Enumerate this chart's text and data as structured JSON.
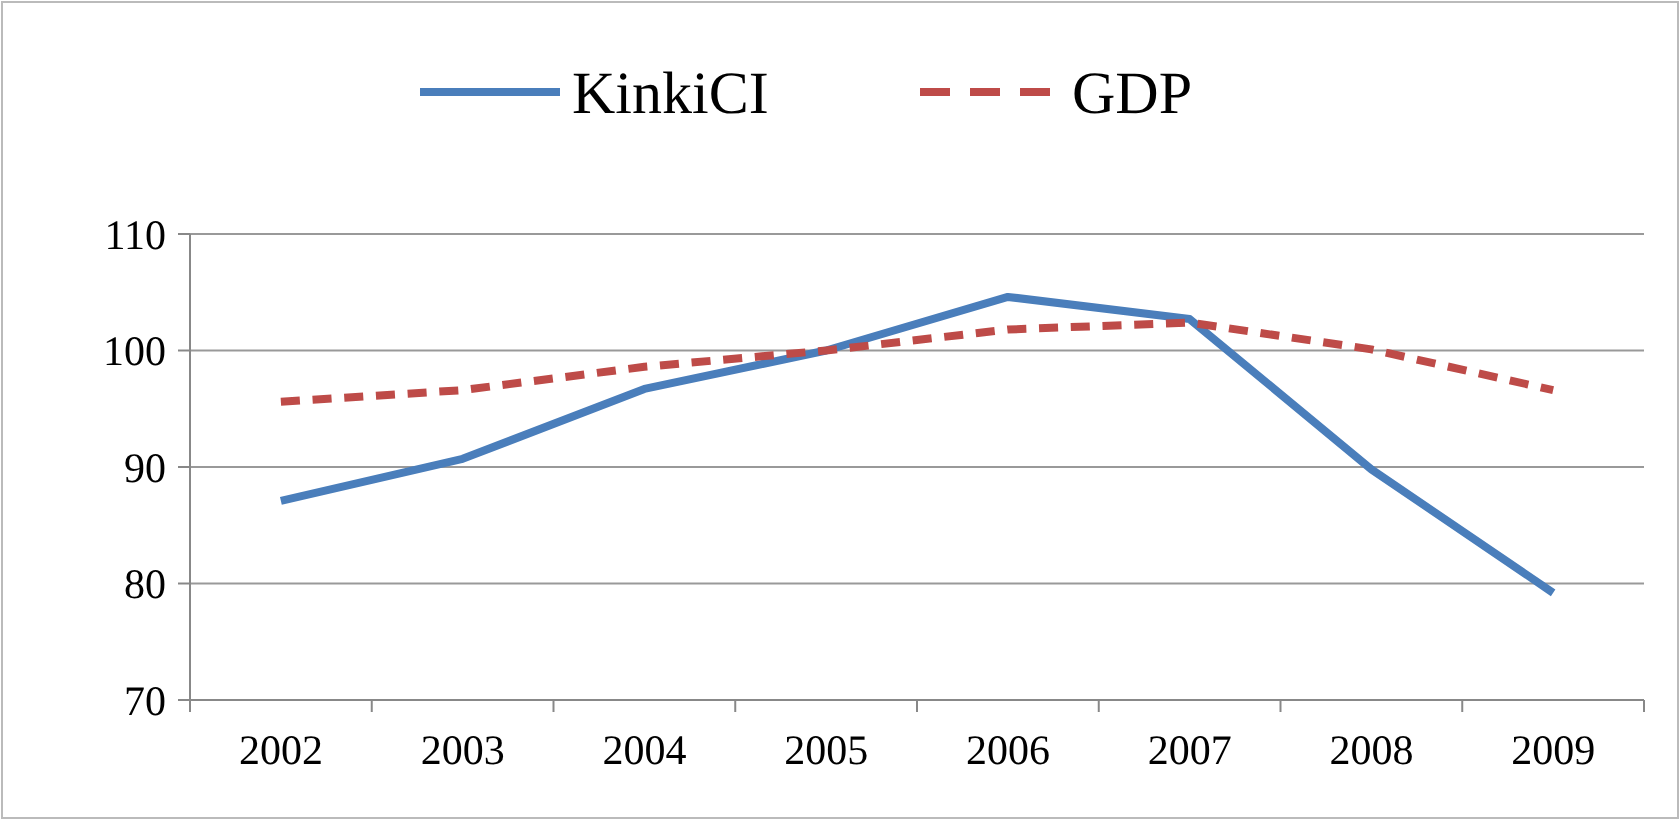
{
  "chart_data": {
    "type": "line",
    "categories": [
      "2002",
      "2003",
      "2004",
      "2005",
      "2006",
      "2007",
      "2008",
      "2009"
    ],
    "series": [
      {
        "name": "KinkiCI",
        "color": "#4a7ebb",
        "line_style": "solid",
        "values": [
          87.1,
          90.7,
          96.7,
          100,
          104.6,
          102.7,
          89.8,
          79.2
        ]
      },
      {
        "name": "GDP",
        "color": "#be4b48",
        "line_style": "dashed",
        "values": [
          95.6,
          96.6,
          98.6,
          100,
          101.8,
          102.4,
          100.1,
          96.6
        ]
      }
    ],
    "ylim": [
      70,
      110
    ],
    "yticks": [
      70,
      80,
      90,
      100,
      110
    ],
    "grid": "y",
    "legend": "top",
    "marker": "none"
  }
}
